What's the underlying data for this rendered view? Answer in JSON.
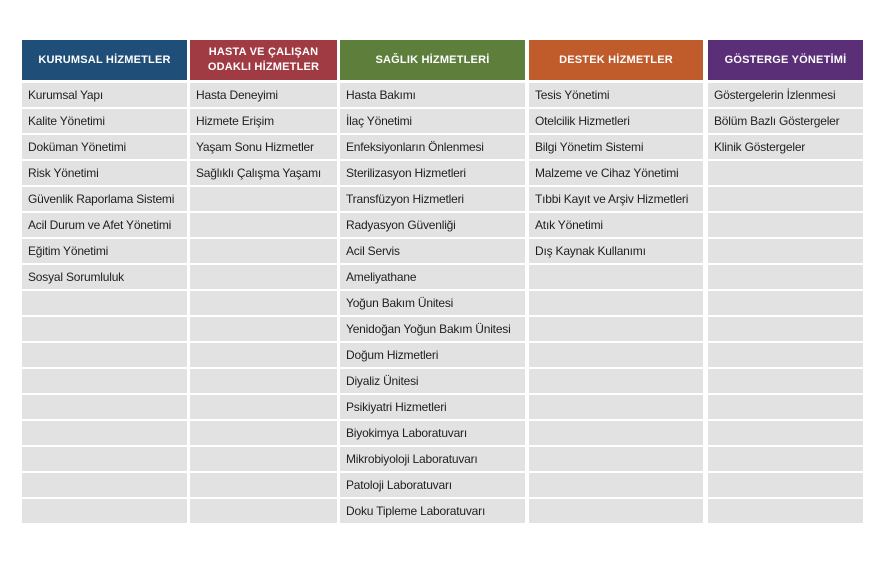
{
  "table": {
    "total_rows": 17,
    "cell_background": "#e2e2e2",
    "columns": [
      {
        "id": "kurumsal-hizmetler",
        "title": "KURUMSAL HİZMETLER",
        "color": "#1f4e78",
        "items": [
          "Kurumsal Yapı",
          "Kalite Yönetimi",
          "Doküman Yönetimi",
          "Risk Yönetimi",
          "Güvenlik Raporlama Sistemi",
          "Acil Durum ve Afet Yönetimi",
          "Eğitim Yönetimi",
          "Sosyal Sorumluluk"
        ]
      },
      {
        "id": "hasta-ve-calisan-odakli-hizmetler",
        "title": "HASTA VE ÇALIŞAN ODAKLI HİZMETLER",
        "color": "#a03b43",
        "items": [
          "Hasta Deneyimi",
          "Hizmete Erişim",
          "Yaşam Sonu Hizmetler",
          "Sağlıklı Çalışma Yaşamı"
        ]
      },
      {
        "id": "saglik-hizmetleri",
        "title": "SAĞLIK HİZMETLERİ",
        "color": "#5e7f3c",
        "items": [
          "Hasta Bakımı",
          "İlaç Yönetimi",
          "Enfeksiyonların Önlenmesi",
          "Sterilizasyon Hizmetleri",
          "Transfüzyon Hizmetleri",
          "Radyasyon Güvenliği",
          "Acil Servis",
          "Ameliyathane",
          "Yoğun Bakım Ünitesi",
          "Yenidoğan Yoğun Bakım Ünitesi",
          "Doğum Hizmetleri",
          "Diyaliz Ünitesi",
          "Psikiyatri Hizmetleri",
          "Biyokimya Laboratuvarı",
          "Mikrobiyoloji Laboratuvarı",
          "Patoloji Laboratuvarı",
          "Doku Tipleme Laboratuvarı"
        ]
      },
      {
        "id": "destek-hizmetler",
        "title": "DESTEK HİZMETLER",
        "color": "#c05b2c",
        "items": [
          "Tesis Yönetimi",
          "Otelcilik Hizmetleri",
          "Bilgi Yönetim Sistemi",
          "Malzeme ve Cihaz Yönetimi",
          "Tıbbi Kayıt ve Arşiv Hizmetleri",
          "Atık Yönetimi",
          "Dış Kaynak Kullanımı"
        ]
      },
      {
        "id": "gosterge-yonetimi",
        "title": "GÖSTERGE YÖNETİMİ",
        "color": "#5b2e78",
        "items": [
          "Göstergelerin İzlenmesi",
          "Bölüm Bazlı Göstergeler",
          "Klinik Göstergeler"
        ]
      }
    ]
  }
}
